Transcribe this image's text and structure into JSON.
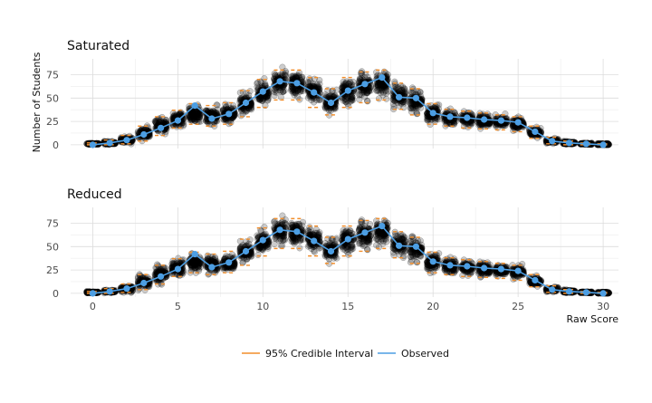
{
  "chart_data": [
    {
      "type": "scatter",
      "title": "Saturated",
      "xlabel": "",
      "ylabel": "Number of Students",
      "xlim": [
        -1.3,
        30.9
      ],
      "ylim": [
        -4,
        92
      ],
      "xticks": [
        0,
        5,
        10,
        15,
        20,
        25,
        30
      ],
      "yticks": [
        0,
        25,
        50,
        75
      ],
      "grid": true,
      "x": [
        0,
        1,
        2,
        3,
        4,
        5,
        6,
        7,
        8,
        9,
        10,
        11,
        12,
        13,
        14,
        15,
        16,
        17,
        18,
        19,
        20,
        21,
        22,
        23,
        24,
        25,
        26,
        27,
        28,
        29,
        30
      ],
      "series": [
        {
          "name": "Observed",
          "color": "#4c9ee3",
          "values": [
            0,
            2,
            5,
            11,
            18,
            26,
            42,
            28,
            33,
            45,
            57,
            68,
            66,
            56,
            45,
            58,
            65,
            72,
            51,
            50,
            34,
            30,
            29,
            27,
            26,
            24,
            14,
            4,
            2,
            1,
            0
          ]
        },
        {
          "name": "95% Credible Interval",
          "color": "#f28e2b",
          "lower": [
            0,
            0,
            1,
            4,
            10,
            18,
            22,
            20,
            22,
            30,
            40,
            48,
            48,
            40,
            32,
            40,
            45,
            48,
            38,
            32,
            22,
            20,
            18,
            17,
            16,
            14,
            7,
            1,
            0,
            0,
            0
          ],
          "upper": [
            2,
            5,
            10,
            20,
            30,
            37,
            44,
            42,
            45,
            58,
            70,
            80,
            80,
            72,
            60,
            72,
            78,
            80,
            66,
            60,
            44,
            38,
            36,
            34,
            32,
            30,
            20,
            8,
            4,
            2,
            1
          ]
        },
        {
          "name": "posterior-draws",
          "color": "#000000",
          "mean": [
            1,
            2,
            5,
            12,
            20,
            27,
            33,
            31,
            33,
            44,
            56,
            66,
            65,
            57,
            46,
            57,
            63,
            66,
            53,
            47,
            33,
            29,
            28,
            26,
            25,
            23,
            13,
            4,
            2,
            1,
            0
          ],
          "spread": [
            1,
            2,
            4,
            8,
            10,
            10,
            11,
            11,
            11,
            13,
            15,
            16,
            16,
            15,
            14,
            15,
            16,
            16,
            14,
            13,
            11,
            9,
            9,
            9,
            8,
            8,
            6,
            3,
            2,
            1,
            1
          ]
        }
      ]
    },
    {
      "type": "scatter",
      "title": "Reduced",
      "xlabel": "Raw Score",
      "ylabel": "",
      "xlim": [
        -1.3,
        30.9
      ],
      "ylim": [
        -4,
        92
      ],
      "xticks": [
        0,
        5,
        10,
        15,
        20,
        25,
        30
      ],
      "yticks": [
        0,
        25,
        50,
        75
      ],
      "grid": true,
      "x": [
        0,
        1,
        2,
        3,
        4,
        5,
        6,
        7,
        8,
        9,
        10,
        11,
        12,
        13,
        14,
        15,
        16,
        17,
        18,
        19,
        20,
        21,
        22,
        23,
        24,
        25,
        26,
        27,
        28,
        29,
        30
      ],
      "series": [
        {
          "name": "Observed",
          "color": "#4c9ee3",
          "values": [
            0,
            2,
            5,
            11,
            18,
            26,
            42,
            28,
            33,
            45,
            57,
            68,
            66,
            56,
            45,
            58,
            65,
            72,
            51,
            50,
            34,
            30,
            29,
            27,
            26,
            24,
            14,
            4,
            2,
            1,
            0
          ]
        },
        {
          "name": "95% Credible Interval",
          "color": "#f28e2b",
          "lower": [
            0,
            0,
            1,
            4,
            10,
            18,
            22,
            20,
            22,
            30,
            40,
            48,
            48,
            40,
            32,
            40,
            45,
            48,
            38,
            32,
            22,
            20,
            18,
            17,
            16,
            14,
            7,
            1,
            0,
            0,
            0
          ],
          "upper": [
            2,
            5,
            10,
            20,
            30,
            37,
            44,
            42,
            45,
            58,
            70,
            80,
            80,
            72,
            60,
            72,
            78,
            80,
            66,
            60,
            44,
            38,
            36,
            34,
            32,
            30,
            20,
            8,
            4,
            2,
            1
          ]
        },
        {
          "name": "posterior-draws",
          "color": "#000000",
          "mean": [
            1,
            2,
            5,
            12,
            20,
            27,
            33,
            31,
            33,
            44,
            56,
            66,
            65,
            57,
            46,
            57,
            63,
            66,
            53,
            47,
            33,
            29,
            28,
            26,
            25,
            23,
            13,
            4,
            2,
            1,
            0
          ],
          "spread": [
            1,
            2,
            4,
            8,
            10,
            10,
            11,
            11,
            11,
            13,
            15,
            16,
            16,
            15,
            14,
            15,
            16,
            16,
            14,
            13,
            11,
            9,
            9,
            9,
            8,
            8,
            6,
            3,
            2,
            1,
            1
          ]
        }
      ]
    }
  ],
  "legend": {
    "placement": "bottom",
    "items": [
      {
        "label": "95% Credible Interval",
        "color": "#f28e2b"
      },
      {
        "label": "Observed",
        "color": "#4c9ee3"
      }
    ]
  }
}
